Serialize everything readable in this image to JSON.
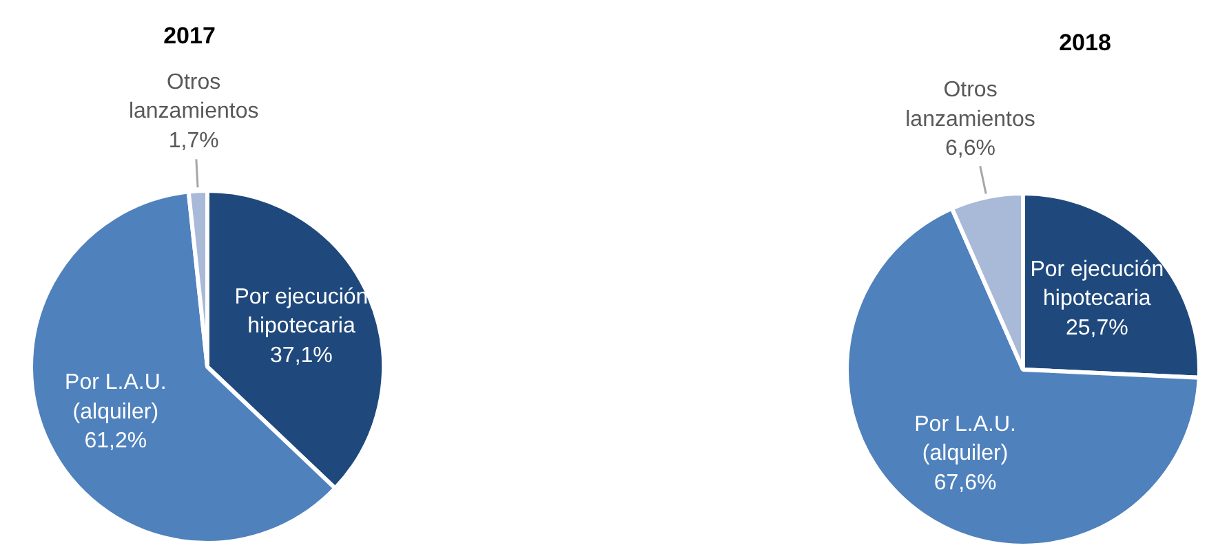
{
  "chart_data": [
    {
      "type": "pie",
      "title": "2017",
      "categories": [
        "Por ejecución hipotecaria",
        "Por L.A.U. (alquiler)",
        "Otros lanzamientos"
      ],
      "values": [
        37.1,
        61.2,
        1.7
      ],
      "colors": [
        "#1f497d",
        "#4f81bd",
        "#a9b9d8"
      ],
      "value_labels": [
        "37,1%",
        "61,2%",
        "1,7%"
      ]
    },
    {
      "type": "pie",
      "title": "2018",
      "categories": [
        "Por ejecución hipotecaria",
        "Por L.A.U. (alquiler)",
        "Otros lanzamientos"
      ],
      "values": [
        25.7,
        67.6,
        6.6
      ],
      "colors": [
        "#1f497d",
        "#4f81bd",
        "#a9b9d8"
      ],
      "value_labels": [
        "25,7%",
        "67,6%",
        "6,6%"
      ]
    }
  ]
}
